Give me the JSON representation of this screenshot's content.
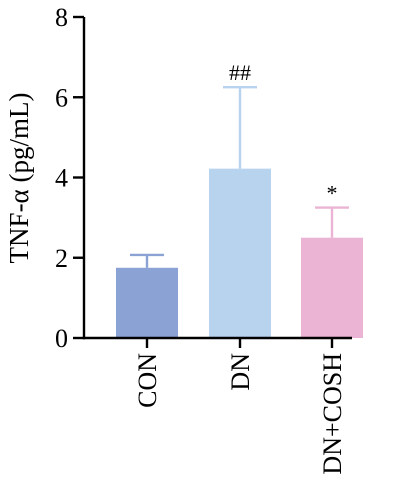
{
  "chart_data": {
    "type": "bar",
    "ylabel": "TNF-α (pg/mL)",
    "xlabel": "",
    "ylim": [
      0,
      8
    ],
    "yticks": [
      0,
      2,
      4,
      6,
      8
    ],
    "ytick_labels": [
      "0",
      "2",
      "4",
      "6",
      "8"
    ],
    "categories": [
      "CON",
      "DN",
      "DN+COSH"
    ],
    "values": [
      1.75,
      4.22,
      2.5
    ],
    "errors": [
      0.32,
      2.03,
      0.75
    ],
    "significance": [
      "",
      "##",
      "*"
    ],
    "colors": [
      "#8aa3d4",
      "#b7d3ee",
      "#ebb4d4"
    ],
    "error_colors": [
      "#8aa3d4",
      "#b7d3ee",
      "#ebb4d4"
    ]
  }
}
